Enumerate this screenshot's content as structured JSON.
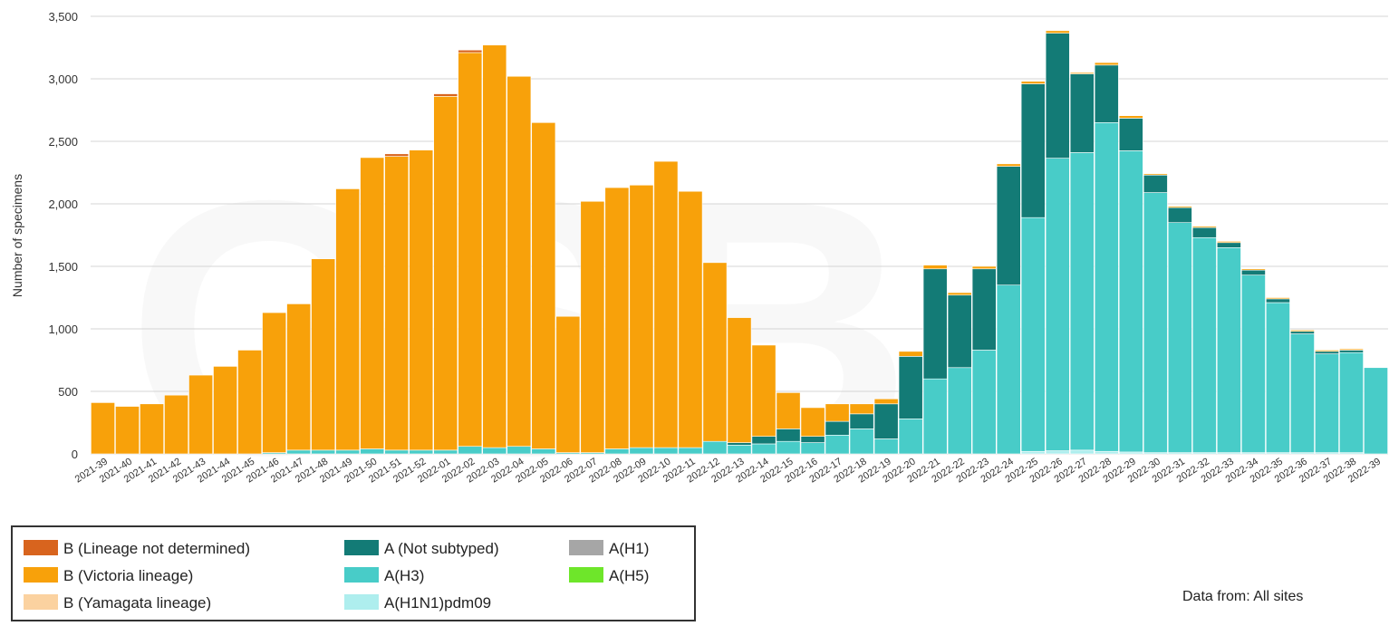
{
  "chart_data": {
    "type": "bar",
    "stacked": true,
    "ylabel": "Number of specimens",
    "ylim": [
      0,
      3500
    ],
    "yticks": [
      "0",
      "500",
      "1,000",
      "1,500",
      "2,000",
      "2,500",
      "3,000",
      "3,500"
    ],
    "grid": true,
    "legend_position": "bottom-left",
    "categories": [
      "2021-39",
      "2021-40",
      "2021-41",
      "2021-42",
      "2021-43",
      "2021-44",
      "2021-45",
      "2021-46",
      "2021-47",
      "2021-48",
      "2021-49",
      "2021-50",
      "2021-51",
      "2021-52",
      "2022-01",
      "2022-02",
      "2022-03",
      "2022-04",
      "2022-05",
      "2022-06",
      "2022-07",
      "2022-08",
      "2022-09",
      "2022-10",
      "2022-11",
      "2022-12",
      "2022-13",
      "2022-14",
      "2022-15",
      "2022-16",
      "2022-17",
      "2022-18",
      "2022-19",
      "2022-20",
      "2022-21",
      "2022-22",
      "2022-23",
      "2022-24",
      "2022-25",
      "2022-26",
      "2022-27",
      "2022-28",
      "2022-29",
      "2022-30",
      "2022-31",
      "2022-32",
      "2022-33",
      "2022-34",
      "2022-35",
      "2022-36",
      "2022-37",
      "2022-38",
      "2022-39"
    ],
    "series": [
      {
        "name": "A(H1N1)pdm09",
        "color": "#aeeeee",
        "values": [
          0,
          0,
          0,
          0,
          0,
          0,
          0,
          0,
          0,
          0,
          0,
          0,
          0,
          0,
          0,
          0,
          0,
          0,
          0,
          0,
          0,
          0,
          0,
          0,
          0,
          0,
          0,
          0,
          0,
          0,
          0,
          0,
          0,
          0,
          0,
          0,
          0,
          0,
          20,
          25,
          30,
          20,
          15,
          10,
          10,
          10,
          10,
          10,
          10,
          10,
          10,
          10,
          0
        ]
      },
      {
        "name": "A(H3)",
        "color": "#48ccc8",
        "values": [
          0,
          0,
          0,
          0,
          0,
          0,
          0,
          10,
          30,
          30,
          30,
          40,
          30,
          30,
          30,
          60,
          50,
          60,
          40,
          10,
          10,
          40,
          50,
          50,
          50,
          100,
          70,
          80,
          100,
          90,
          150,
          200,
          120,
          280,
          600,
          690,
          830,
          1350,
          1870,
          2340,
          2380,
          2630,
          2410,
          2080,
          1840,
          1720,
          1640,
          1420,
          1200,
          950,
          790,
          800,
          690
        ]
      },
      {
        "name": "A (Not subtyped)",
        "color": "#137b76",
        "values": [
          0,
          0,
          0,
          0,
          0,
          0,
          0,
          0,
          0,
          0,
          0,
          0,
          0,
          0,
          0,
          0,
          0,
          0,
          0,
          0,
          0,
          0,
          0,
          0,
          0,
          0,
          20,
          60,
          100,
          50,
          110,
          120,
          280,
          500,
          880,
          580,
          650,
          950,
          1070,
          1000,
          630,
          460,
          260,
          140,
          120,
          80,
          40,
          40,
          30,
          20,
          20,
          20,
          0
        ]
      },
      {
        "name": "B (Victoria lineage)",
        "color": "#f8a10a",
        "values": [
          410,
          380,
          400,
          470,
          630,
          700,
          830,
          1120,
          1170,
          1530,
          2090,
          2330,
          2350,
          2400,
          2830,
          3150,
          3220,
          2960,
          2610,
          1090,
          2010,
          2090,
          2100,
          2290,
          2050,
          1430,
          1000,
          730,
          290,
          230,
          140,
          80,
          40,
          40,
          30,
          20,
          20,
          20,
          20,
          20,
          10,
          20,
          20,
          10,
          10,
          10,
          10,
          10,
          10,
          10,
          10,
          10,
          0
        ]
      },
      {
        "name": "B (Lineage not determined)",
        "color": "#d8641e",
        "values": [
          0,
          0,
          0,
          0,
          0,
          0,
          0,
          0,
          0,
          0,
          0,
          0,
          20,
          0,
          20,
          20,
          0,
          0,
          0,
          0,
          0,
          0,
          0,
          0,
          0,
          0,
          0,
          0,
          0,
          0,
          0,
          0,
          0,
          0,
          0,
          0,
          0,
          0,
          0,
          0,
          0,
          0,
          0,
          0,
          0,
          0,
          0,
          0,
          0,
          0,
          0,
          0,
          0
        ]
      },
      {
        "name": "B (Yamagata lineage)",
        "color": "#fbd2a0",
        "values": [
          0,
          0,
          0,
          0,
          0,
          0,
          0,
          0,
          0,
          0,
          0,
          0,
          0,
          0,
          0,
          0,
          0,
          0,
          0,
          0,
          0,
          0,
          0,
          0,
          0,
          0,
          0,
          0,
          0,
          0,
          0,
          0,
          0,
          0,
          0,
          0,
          0,
          0,
          0,
          0,
          0,
          0,
          0,
          0,
          0,
          0,
          0,
          0,
          0,
          0,
          0,
          0,
          0
        ]
      },
      {
        "name": "A(H1)",
        "color": "#a6a6a6",
        "values": [
          0,
          0,
          0,
          0,
          0,
          0,
          0,
          0,
          0,
          0,
          0,
          0,
          0,
          0,
          0,
          0,
          0,
          0,
          0,
          0,
          0,
          0,
          0,
          0,
          0,
          0,
          0,
          0,
          0,
          0,
          0,
          0,
          0,
          0,
          0,
          0,
          0,
          0,
          0,
          0,
          0,
          0,
          0,
          0,
          0,
          0,
          0,
          0,
          0,
          0,
          0,
          0,
          0
        ]
      },
      {
        "name": "A(H5)",
        "color": "#6ee62a",
        "values": [
          0,
          0,
          0,
          0,
          0,
          0,
          0,
          0,
          0,
          0,
          0,
          0,
          0,
          0,
          0,
          0,
          0,
          0,
          0,
          0,
          0,
          0,
          0,
          0,
          0,
          0,
          0,
          0,
          0,
          0,
          0,
          0,
          0,
          0,
          0,
          0,
          0,
          0,
          0,
          0,
          0,
          0,
          0,
          0,
          0,
          0,
          0,
          0,
          0,
          0,
          0,
          0,
          0
        ]
      }
    ]
  },
  "legend": {
    "items": [
      {
        "label": "B (Lineage not determined)",
        "color": "#d8641e"
      },
      {
        "label": "B (Victoria lineage)",
        "color": "#f8a10a"
      },
      {
        "label": "B (Yamagata lineage)",
        "color": "#fbd2a0"
      },
      {
        "label": "A (Not subtyped)",
        "color": "#137b76"
      },
      {
        "label": "A(H3)",
        "color": "#48ccc8"
      },
      {
        "label": "A(H1N1)pdm09",
        "color": "#aeeeee"
      },
      {
        "label": "A(H1)",
        "color": "#a6a6a6"
      },
      {
        "label": "A(H5)",
        "color": "#6ee62a"
      }
    ]
  },
  "footer": {
    "data_from": "Data from: All sites"
  }
}
